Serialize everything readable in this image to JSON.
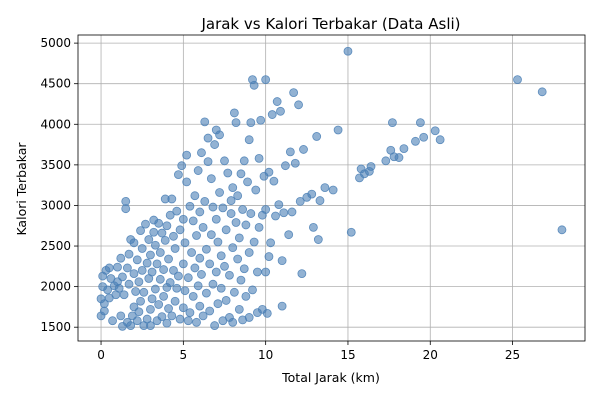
{
  "chart_data": {
    "type": "scatter",
    "title": "Jarak vs Kalori Terbakar (Data Asli)",
    "xlabel": "Total Jarak (km)",
    "ylabel": "Kalori Terbakar",
    "xlim": [
      -1.4,
      29.4
    ],
    "ylim": [
      1330,
      5100
    ],
    "xticks": [
      0,
      5,
      10,
      15,
      20,
      25
    ],
    "yticks": [
      1500,
      2000,
      2500,
      3000,
      3500,
      4000,
      4500,
      5000
    ],
    "grid": true,
    "marker_color": "#4a7fb5",
    "points": [
      [
        0,
        1640
      ],
      [
        0,
        1850
      ],
      [
        0.1,
        2000
      ],
      [
        0.1,
        2130
      ],
      [
        0.2,
        1700
      ],
      [
        0.2,
        1790
      ],
      [
        0.3,
        2200
      ],
      [
        0.4,
        1960
      ],
      [
        0.5,
        1860
      ],
      [
        0.5,
        2230
      ],
      [
        0.6,
        2100
      ],
      [
        0.7,
        1580
      ],
      [
        0.8,
        2010
      ],
      [
        0.9,
        1900
      ],
      [
        1,
        2060
      ],
      [
        1,
        2240
      ],
      [
        1.1,
        1980
      ],
      [
        1.2,
        1640
      ],
      [
        1.2,
        2350
      ],
      [
        1.3,
        1510
      ],
      [
        1.3,
        2120
      ],
      [
        1.4,
        1900
      ],
      [
        1.5,
        2960
      ],
      [
        1.5,
        3050
      ],
      [
        1.6,
        1560
      ],
      [
        1.6,
        2230
      ],
      [
        1.7,
        2030
      ],
      [
        1.7,
        2400
      ],
      [
        1.8,
        1520
      ],
      [
        1.8,
        2580
      ],
      [
        1.9,
        1640
      ],
      [
        2,
        1750
      ],
      [
        2,
        2160
      ],
      [
        2,
        2540
      ],
      [
        2.1,
        1940
      ],
      [
        2.2,
        1580
      ],
      [
        2.2,
        2330
      ],
      [
        2.3,
        1690
      ],
      [
        2.3,
        2060
      ],
      [
        2.4,
        1820
      ],
      [
        2.4,
        2690
      ],
      [
        2.5,
        2200
      ],
      [
        2.5,
        2470
      ],
      [
        2.6,
        1520
      ],
      [
        2.6,
        1930
      ],
      [
        2.7,
        2770
      ],
      [
        2.8,
        1600
      ],
      [
        2.8,
        2290
      ],
      [
        2.9,
        2100
      ],
      [
        2.9,
        2580
      ],
      [
        3,
        1720
      ],
      [
        3,
        1520
      ],
      [
        3,
        2390
      ],
      [
        3.1,
        1850
      ],
      [
        3.1,
        2180
      ],
      [
        3.2,
        2670
      ],
      [
        3.2,
        2820
      ],
      [
        3.3,
        1970
      ],
      [
        3.3,
        2510
      ],
      [
        3.4,
        1580
      ],
      [
        3.4,
        2280
      ],
      [
        3.5,
        2780
      ],
      [
        3.5,
        1780
      ],
      [
        3.6,
        2090
      ],
      [
        3.6,
        2420
      ],
      [
        3.7,
        1630
      ],
      [
        3.7,
        2660
      ],
      [
        3.8,
        1880
      ],
      [
        3.8,
        2210
      ],
      [
        3.9,
        2570
      ],
      [
        3.9,
        3080
      ],
      [
        4,
        1550
      ],
      [
        4,
        1990
      ],
      [
        4,
        2750
      ],
      [
        4.1,
        1730
      ],
      [
        4.1,
        2340
      ],
      [
        4.2,
        2050
      ],
      [
        4.2,
        2880
      ],
      [
        4.3,
        1640
      ],
      [
        4.3,
        3080
      ],
      [
        4.4,
        2200
      ],
      [
        4.4,
        2620
      ],
      [
        4.5,
        1820
      ],
      [
        4.5,
        2470
      ],
      [
        4.6,
        1980
      ],
      [
        4.6,
        2930
      ],
      [
        4.7,
        3380
      ],
      [
        4.7,
        2130
      ],
      [
        4.8,
        1600
      ],
      [
        4.8,
        2700
      ],
      [
        4.9,
        3490
      ],
      [
        5,
        1740
      ],
      [
        5,
        2280
      ],
      [
        5,
        2830
      ],
      [
        5.1,
        1950
      ],
      [
        5.1,
        2540
      ],
      [
        5.2,
        3290
      ],
      [
        5.2,
        3620
      ],
      [
        5.3,
        1580
      ],
      [
        5.3,
        2110
      ],
      [
        5.4,
        2990
      ],
      [
        5.4,
        1680
      ],
      [
        5.5,
        2420
      ],
      [
        5.6,
        1880
      ],
      [
        5.6,
        2810
      ],
      [
        5.7,
        2230
      ],
      [
        5.7,
        3120
      ],
      [
        5.8,
        1560
      ],
      [
        5.8,
        2630
      ],
      [
        5.9,
        2010
      ],
      [
        5.9,
        3430
      ],
      [
        6,
        1760
      ],
      [
        6,
        2350
      ],
      [
        6,
        2920
      ],
      [
        6.1,
        3650
      ],
      [
        6.1,
        2150
      ],
      [
        6.2,
        1640
      ],
      [
        6.2,
        2730
      ],
      [
        6.3,
        3050
      ],
      [
        6.3,
        4030
      ],
      [
        6.4,
        1920
      ],
      [
        6.4,
        2460
      ],
      [
        6.5,
        3540
      ],
      [
        6.5,
        3830
      ],
      [
        6.6,
        2280
      ],
      [
        6.6,
        1700
      ],
      [
        6.7,
        2640
      ],
      [
        6.7,
        3330
      ],
      [
        6.8,
        2030
      ],
      [
        6.8,
        2980
      ],
      [
        6.9,
        1520
      ],
      [
        6.9,
        3750
      ],
      [
        7,
        2180
      ],
      [
        7,
        2830
      ],
      [
        7,
        3930
      ],
      [
        7.1,
        1790
      ],
      [
        7.1,
        2550
      ],
      [
        7.2,
        3160
      ],
      [
        7.2,
        3870
      ],
      [
        7.3,
        1980
      ],
      [
        7.3,
        2380
      ],
      [
        7.4,
        1580
      ],
      [
        7.4,
        2970
      ],
      [
        7.5,
        3550
      ],
      [
        7.5,
        2250
      ],
      [
        7.6,
        1830
      ],
      [
        7.6,
        2700
      ],
      [
        7.7,
        3400
      ],
      [
        7.8,
        1620
      ],
      [
        7.8,
        2140
      ],
      [
        7.9,
        3060
      ],
      [
        7.9,
        2900
      ],
      [
        8,
        1560
      ],
      [
        8,
        2480
      ],
      [
        8,
        3220
      ],
      [
        8.1,
        4140
      ],
      [
        8.1,
        1930
      ],
      [
        8.2,
        2790
      ],
      [
        8.2,
        4020
      ],
      [
        8.3,
        2340
      ],
      [
        8.3,
        3120
      ],
      [
        8.4,
        1720
      ],
      [
        8.4,
        2600
      ],
      [
        8.5,
        3390
      ],
      [
        8.5,
        2080
      ],
      [
        8.6,
        1590
      ],
      [
        8.6,
        2950
      ],
      [
        8.7,
        3550
      ],
      [
        8.7,
        2220
      ],
      [
        8.8,
        1880
      ],
      [
        8.8,
        2760
      ],
      [
        8.9,
        3290
      ],
      [
        9,
        1620
      ],
      [
        9,
        2420
      ],
      [
        9,
        3810
      ],
      [
        9.1,
        4020
      ],
      [
        9.1,
        2900
      ],
      [
        9.2,
        4550
      ],
      [
        9.2,
        1960
      ],
      [
        9.3,
        4480
      ],
      [
        9.3,
        2550
      ],
      [
        9.4,
        3190
      ],
      [
        9.5,
        1680
      ],
      [
        9.5,
        2180
      ],
      [
        9.6,
        2730
      ],
      [
        9.6,
        3580
      ],
      [
        9.7,
        4050
      ],
      [
        9.8,
        1720
      ],
      [
        9.8,
        2880
      ],
      [
        9.9,
        3360
      ],
      [
        10,
        4550
      ],
      [
        10,
        2180
      ],
      [
        10,
        2950
      ],
      [
        10.1,
        1670
      ],
      [
        10.2,
        2370
      ],
      [
        10.2,
        3410
      ],
      [
        10.3,
        2540
      ],
      [
        10.4,
        4120
      ],
      [
        10.5,
        3300
      ],
      [
        10.6,
        2870
      ],
      [
        10.7,
        4280
      ],
      [
        10.8,
        3010
      ],
      [
        10.9,
        4160
      ],
      [
        11,
        2320
      ],
      [
        11,
        1760
      ],
      [
        11.1,
        2910
      ],
      [
        11.2,
        3490
      ],
      [
        11.4,
        2640
      ],
      [
        11.5,
        3660
      ],
      [
        11.6,
        2920
      ],
      [
        11.7,
        4390
      ],
      [
        11.8,
        3520
      ],
      [
        12,
        4240
      ],
      [
        12.1,
        3050
      ],
      [
        12.2,
        2160
      ],
      [
        12.3,
        3690
      ],
      [
        12.5,
        3100
      ],
      [
        12.8,
        3140
      ],
      [
        12.9,
        2730
      ],
      [
        13.1,
        3850
      ],
      [
        13.2,
        2580
      ],
      [
        13.3,
        3060
      ],
      [
        13.6,
        3220
      ],
      [
        14.1,
        3190
      ],
      [
        14.4,
        3930
      ],
      [
        15,
        4900
      ],
      [
        15.2,
        2670
      ],
      [
        15.7,
        3340
      ],
      [
        15.8,
        3450
      ],
      [
        16,
        3390
      ],
      [
        16.3,
        3420
      ],
      [
        16.4,
        3480
      ],
      [
        17.3,
        3550
      ],
      [
        17.6,
        3680
      ],
      [
        17.7,
        4020
      ],
      [
        17.8,
        3600
      ],
      [
        18.1,
        3590
      ],
      [
        18.4,
        3700
      ],
      [
        19.1,
        3790
      ],
      [
        19.4,
        4020
      ],
      [
        19.6,
        3840
      ],
      [
        20.3,
        3920
      ],
      [
        20.6,
        3810
      ],
      [
        25.3,
        4550
      ],
      [
        26.8,
        4400
      ],
      [
        28,
        2700
      ]
    ]
  }
}
